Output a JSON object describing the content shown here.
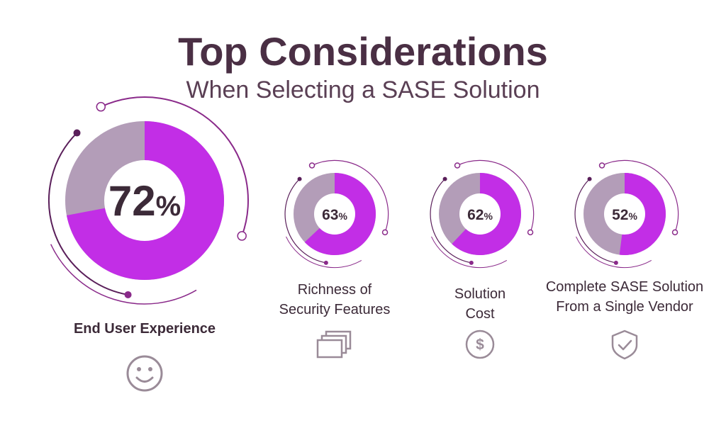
{
  "header": {
    "title": "Top Considerations",
    "subtitle": "When Selecting a SASE Solution"
  },
  "colors": {
    "accent": "#c22ee6",
    "remainder": "#b39db8",
    "ring": "#8a2a8a",
    "dark_ring": "#5a1f5a",
    "text": "#3c2a38",
    "icon": "#9a8b98"
  },
  "chart_data": {
    "type": "pie",
    "style": "donut",
    "title": "Top Considerations",
    "subtitle": "When Selecting a SASE Solution",
    "categories": [
      "End User Experience",
      "Richness of Security Features",
      "Solution Cost",
      "Complete SASE Solution From a Single Vendor"
    ],
    "values": [
      72,
      63,
      62,
      52
    ],
    "unit": "%",
    "items": [
      {
        "value": 72,
        "value_label": "72",
        "unit": "%",
        "label_lines": [
          "End User Experience"
        ],
        "icon": "smiley-face-icon"
      },
      {
        "value": 63,
        "value_label": "63",
        "unit": "%",
        "label_lines": [
          "Richness of",
          "Security Features"
        ],
        "icon": "stacked-layers-icon"
      },
      {
        "value": 62,
        "value_label": "62",
        "unit": "%",
        "label_lines": [
          "Solution",
          "Cost"
        ],
        "icon": "dollar-coin-icon"
      },
      {
        "value": 52,
        "value_label": "52",
        "unit": "%",
        "label_lines": [
          "Complete SASE Solution",
          "From a Single Vendor"
        ],
        "icon": "shield-check-icon"
      }
    ]
  }
}
